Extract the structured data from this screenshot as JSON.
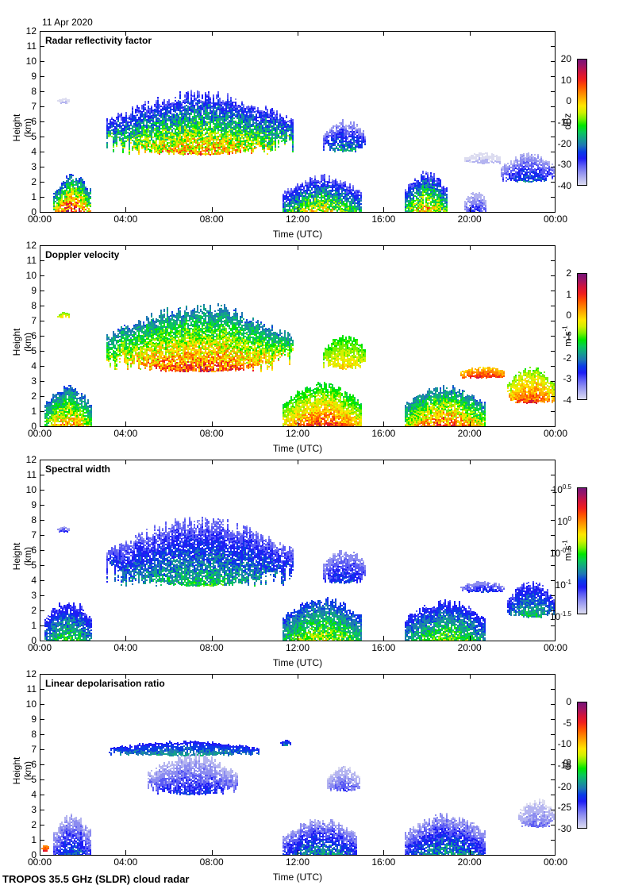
{
  "header": {
    "date": "11 Apr 2020"
  },
  "footer": {
    "instrument": "TROPOS 35.5 GHz (SLDR) cloud radar"
  },
  "colormap": [
    "#dcdcf0",
    "#b4b4f0",
    "#8c8cf0",
    "#5a5af5",
    "#1e1ef5",
    "#0a3ce6",
    "#1e78b4",
    "#14a08c",
    "#0ac85a",
    "#00e600",
    "#78f000",
    "#d2f000",
    "#ffe600",
    "#ffb400",
    "#ff8200",
    "#ff5000",
    "#f01e1e",
    "#d2143c",
    "#a01464",
    "#781478"
  ],
  "chart_data": [
    {
      "type": "heatmap",
      "title": "Radar reflectivity factor",
      "xlabel": "Time (UTC)",
      "ylabel": "Height (km)",
      "x_ticks": [
        "00:00",
        "04:00",
        "08:00",
        "12:00",
        "16:00",
        "20:00",
        "00:00"
      ],
      "xlim_hours": [
        0,
        24
      ],
      "y_ticks": [
        0,
        1,
        2,
        3,
        4,
        5,
        6,
        7,
        8,
        9,
        10,
        11,
        12
      ],
      "ylim": [
        0,
        12
      ],
      "colorbar": {
        "unit": "dBz",
        "ticks": [
          "20",
          "10",
          "0",
          "-10",
          "-20",
          "-30",
          "-40"
        ],
        "range": [
          -40,
          20
        ]
      },
      "clouds": [
        {
          "t0": 0.6,
          "t1": 2.4,
          "base": 0,
          "top": 2.6,
          "vmin": -35,
          "vmax": 15,
          "core": 0.8
        },
        {
          "t0": 0.8,
          "t1": 1.4,
          "base": 7.2,
          "top": 7.6,
          "vmin": -40,
          "vmax": -35,
          "core": 0.1
        },
        {
          "t0": 3.1,
          "t1": 11.8,
          "base": 3.8,
          "top": 8.2,
          "vmin": -40,
          "vmax": 5,
          "core": 0.5
        },
        {
          "t0": 11.3,
          "t1": 15.0,
          "base": 0,
          "top": 2.5,
          "vmin": -40,
          "vmax": 0,
          "core": 0.5
        },
        {
          "t0": 13.2,
          "t1": 15.2,
          "base": 4.0,
          "top": 6.2,
          "vmin": -40,
          "vmax": -15,
          "core": 0.3
        },
        {
          "t0": 17.0,
          "t1": 19.0,
          "base": 0,
          "top": 2.8,
          "vmin": -40,
          "vmax": 5,
          "core": 0.5
        },
        {
          "t0": 19.8,
          "t1": 20.8,
          "base": 0,
          "top": 1.5,
          "vmin": -40,
          "vmax": -25,
          "core": 0.2
        },
        {
          "t0": 19.8,
          "t1": 21.5,
          "base": 3.2,
          "top": 4.0,
          "vmin": -40,
          "vmax": -35,
          "core": 0.1
        },
        {
          "t0": 21.5,
          "t1": 24.0,
          "base": 2.0,
          "top": 4.0,
          "vmin": -40,
          "vmax": -20,
          "core": 0.3
        }
      ]
    },
    {
      "type": "heatmap",
      "title": "Doppler velocity",
      "xlabel": "Time (UTC)",
      "ylabel": "Height (km)",
      "x_ticks": [
        "00:00",
        "04:00",
        "08:00",
        "12:00",
        "16:00",
        "20:00",
        "00:00"
      ],
      "xlim_hours": [
        0,
        24
      ],
      "y_ticks": [
        0,
        1,
        2,
        3,
        4,
        5,
        6,
        7,
        8,
        9,
        10,
        11,
        12
      ],
      "ylim": [
        0,
        12
      ],
      "colorbar": {
        "unit": "m s-1",
        "ticks": [
          "2",
          "1",
          "0",
          "-1",
          "-2",
          "-3",
          "-4"
        ],
        "range": [
          -4,
          2
        ]
      },
      "clouds": [
        {
          "t0": 0.2,
          "t1": 2.4,
          "base": 0,
          "top": 2.8,
          "vmin": -3,
          "vmax": 0.5,
          "core": 0.5
        },
        {
          "t0": 0.8,
          "t1": 1.4,
          "base": 7.2,
          "top": 7.6,
          "vmin": -1,
          "vmax": 0,
          "core": 0.5
        },
        {
          "t0": 3.1,
          "t1": 11.8,
          "base": 3.6,
          "top": 8.3,
          "vmin": -3,
          "vmax": 1,
          "core": 0.5
        },
        {
          "t0": 11.3,
          "t1": 15.0,
          "base": 0,
          "top": 3.0,
          "vmin": -2,
          "vmax": 1,
          "core": 0.5
        },
        {
          "t0": 13.2,
          "t1": 15.2,
          "base": 3.8,
          "top": 6.2,
          "vmin": -1.5,
          "vmax": 0,
          "core": 0.5
        },
        {
          "t0": 17.0,
          "t1": 20.8,
          "base": 0,
          "top": 2.8,
          "vmin": -3,
          "vmax": 1,
          "core": 0.5
        },
        {
          "t0": 19.6,
          "t1": 21.7,
          "base": 3.2,
          "top": 4.0,
          "vmin": -0.5,
          "vmax": 1.2,
          "core": 0.5
        },
        {
          "t0": 21.8,
          "t1": 24.0,
          "base": 1.5,
          "top": 4.0,
          "vmin": -1.5,
          "vmax": 1,
          "core": 0.5
        }
      ]
    },
    {
      "type": "heatmap",
      "title": "Spectral width",
      "xlabel": "Time (UTC)",
      "ylabel": "Height (km)",
      "x_ticks": [
        "00:00",
        "04:00",
        "08:00",
        "12:00",
        "16:00",
        "20:00",
        "00:00"
      ],
      "xlim_hours": [
        0,
        24
      ],
      "y_ticks": [
        0,
        1,
        2,
        3,
        4,
        5,
        6,
        7,
        8,
        9,
        10,
        11,
        12
      ],
      "ylim": [
        0,
        12
      ],
      "colorbar": {
        "unit": "m s-1",
        "ticks": [
          "10^0.5",
          "10^0",
          "10^-0.5",
          "10^-1",
          "10^-1.5"
        ],
        "range_log10": [
          -1.5,
          0.5
        ]
      },
      "clouds": [
        {
          "t0": 0.2,
          "t1": 2.4,
          "base": 0,
          "top": 2.8,
          "vmin": -1.3,
          "vmax": -0.5,
          "core": 0.5
        },
        {
          "t0": 0.8,
          "t1": 1.4,
          "base": 7.2,
          "top": 7.6,
          "vmin": -1.4,
          "vmax": -1.0,
          "core": 0.5
        },
        {
          "t0": 3.1,
          "t1": 11.8,
          "base": 3.6,
          "top": 8.3,
          "vmin": -1.4,
          "vmax": -0.6,
          "core": 0.5
        },
        {
          "t0": 11.3,
          "t1": 15.0,
          "base": 0,
          "top": 3.0,
          "vmin": -1.2,
          "vmax": -0.3,
          "core": 0.5
        },
        {
          "t0": 13.2,
          "t1": 15.2,
          "base": 3.8,
          "top": 6.2,
          "vmin": -1.4,
          "vmax": -0.9,
          "core": 0.5
        },
        {
          "t0": 17.0,
          "t1": 20.8,
          "base": 0,
          "top": 2.8,
          "vmin": -1.3,
          "vmax": -0.4,
          "core": 0.5
        },
        {
          "t0": 19.6,
          "t1": 21.7,
          "base": 3.2,
          "top": 4.0,
          "vmin": -1.4,
          "vmax": -0.9,
          "core": 0.5
        },
        {
          "t0": 21.8,
          "t1": 24.0,
          "base": 1.5,
          "top": 4.0,
          "vmin": -1.3,
          "vmax": -0.6,
          "core": 0.5
        }
      ]
    },
    {
      "type": "heatmap",
      "title": "Linear depolarisation ratio",
      "xlabel": "Time (UTC)",
      "ylabel": "Height (km)",
      "x_ticks": [
        "00:00",
        "04:00",
        "08:00",
        "12:00",
        "16:00",
        "20:00",
        "00:00"
      ],
      "xlim_hours": [
        0,
        24
      ],
      "y_ticks": [
        0,
        1,
        2,
        3,
        4,
        5,
        6,
        7,
        8,
        9,
        10,
        11,
        12
      ],
      "ylim": [
        0,
        12
      ],
      "colorbar": {
        "unit": "dB",
        "ticks": [
          "0",
          "-5",
          "-10",
          "-15",
          "-20",
          "-25",
          "-30"
        ],
        "range": [
          -30,
          0
        ]
      },
      "clouds": [
        {
          "t0": 0.05,
          "t1": 0.4,
          "base": 0.2,
          "top": 0.7,
          "vmin": -10,
          "vmax": -3,
          "core": 0.5
        },
        {
          "t0": 0.6,
          "t1": 2.4,
          "base": 0,
          "top": 2.8,
          "vmin": -30,
          "vmax": -20,
          "core": 0.5
        },
        {
          "t0": 3.2,
          "t1": 10.2,
          "base": 6.6,
          "top": 7.6,
          "vmin": -25,
          "vmax": -18,
          "core": 0.3
        },
        {
          "t0": 5.0,
          "t1": 9.2,
          "base": 4.0,
          "top": 6.8,
          "vmin": -30,
          "vmax": -22,
          "core": 0.5
        },
        {
          "t0": 11.2,
          "t1": 11.7,
          "base": 7.2,
          "top": 7.7,
          "vmin": -25,
          "vmax": -18,
          "core": 0.3
        },
        {
          "t0": 11.3,
          "t1": 14.8,
          "base": 0,
          "top": 2.5,
          "vmin": -30,
          "vmax": -18,
          "core": 0.5
        },
        {
          "t0": 13.4,
          "t1": 14.9,
          "base": 4.2,
          "top": 6.0,
          "vmin": -30,
          "vmax": -24,
          "core": 0.3
        },
        {
          "t0": 17.0,
          "t1": 20.8,
          "base": 0,
          "top": 2.8,
          "vmin": -30,
          "vmax": -18,
          "core": 0.5
        },
        {
          "t0": 22.3,
          "t1": 24.0,
          "base": 1.8,
          "top": 3.8,
          "vmin": -30,
          "vmax": -25,
          "core": 0.3
        }
      ]
    }
  ]
}
